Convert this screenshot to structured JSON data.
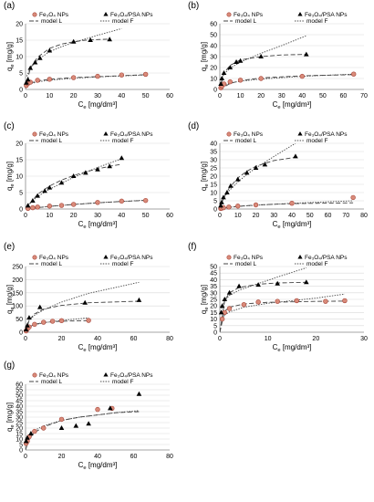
{
  "legend_entries": {
    "s1": "Fe₃O₄ NPs",
    "s2": "Fe₃O₄/PSA NPs",
    "l": "model L",
    "f": "model F"
  },
  "colors": {
    "s1_fill": "#d98b7a",
    "s1_stroke": "#a8463a",
    "s2": "#000000",
    "model_l": "#444444",
    "model_f": "#444444",
    "axis": "#888888",
    "grid": "#d9d9d9"
  },
  "chart_data": [
    {
      "panel": "(a)",
      "type": "scatter",
      "xlabel": "Ce [mg/dm³]",
      "ylabel": "qe [mg/g]",
      "xlim": [
        0,
        60
      ],
      "ylim": [
        0,
        20
      ],
      "xticks": [
        0,
        10,
        20,
        30,
        40,
        50,
        60
      ],
      "yticks": [
        0,
        5,
        10,
        15,
        20
      ],
      "series": [
        {
          "name": "Fe₃O₄ NPs",
          "x": [
            0.3,
            1,
            2,
            5,
            10,
            20,
            30,
            40,
            50
          ],
          "y": [
            1.2,
            1.8,
            2.2,
            2.8,
            3.1,
            3.6,
            4.0,
            4.4,
            4.6
          ]
        },
        {
          "name": "Fe₃O₄/PSA NPs",
          "x": [
            0.3,
            1,
            2,
            4,
            6,
            10,
            20,
            27,
            35
          ],
          "y": [
            2.0,
            3.0,
            6.5,
            8.2,
            9.5,
            11.8,
            14.5,
            15.0,
            15.2
          ]
        }
      ],
      "models": [
        {
          "name": "model L",
          "x": [
            0,
            2,
            5,
            10,
            15,
            20,
            25,
            30,
            35
          ],
          "y": [
            0.5,
            6.5,
            9.8,
            12.5,
            13.8,
            14.5,
            15.0,
            15.2,
            15.3
          ]
        },
        {
          "name": "model F",
          "x": [
            0.5,
            2,
            5,
            10,
            15,
            20,
            25,
            30,
            35,
            40
          ],
          "y": [
            4.0,
            6.5,
            9.0,
            11.5,
            13.0,
            14.3,
            15.4,
            16.5,
            17.5,
            18.5
          ]
        },
        {
          "name": "model L",
          "x": [
            0,
            2,
            5,
            10,
            20,
            30,
            40,
            50
          ],
          "y": [
            0.4,
            1.9,
            2.6,
            3.1,
            3.6,
            3.9,
            4.2,
            4.5
          ]
        },
        {
          "name": "model F",
          "x": [
            0.5,
            2,
            5,
            10,
            20,
            30,
            40,
            50
          ],
          "y": [
            1.1,
            1.7,
            2.3,
            2.8,
            3.4,
            3.8,
            4.1,
            4.4
          ]
        }
      ]
    },
    {
      "panel": "(b)",
      "type": "scatter",
      "xlabel": "Ce [mg/dm³]",
      "ylabel": "qe [mg/g]",
      "xlim": [
        0,
        70
      ],
      "ylim": [
        0,
        60
      ],
      "xticks": [
        0,
        10,
        20,
        30,
        40,
        50,
        60,
        70
      ],
      "yticks": [
        0,
        10,
        20,
        30,
        40,
        50,
        60
      ],
      "series": [
        {
          "name": "Fe₃O₄ NPs",
          "x": [
            0.5,
            1,
            2,
            5,
            10,
            20,
            40,
            65
          ],
          "y": [
            1.5,
            3,
            5,
            7,
            8.5,
            10,
            12,
            14
          ]
        },
        {
          "name": "Fe₃O₄/PSA NPs",
          "x": [
            0.5,
            1,
            2,
            5,
            8,
            10,
            20,
            42
          ],
          "y": [
            5,
            10,
            15,
            20,
            25,
            26,
            30,
            32
          ]
        }
      ],
      "models": [
        {
          "name": "model L",
          "x": [
            0,
            2,
            5,
            10,
            20,
            30,
            42
          ],
          "y": [
            0,
            15,
            22,
            27,
            30,
            31.5,
            32
          ]
        },
        {
          "name": "model F",
          "x": [
            0.5,
            2,
            5,
            10,
            20,
            30,
            42
          ],
          "y": [
            8,
            14,
            19.5,
            25,
            33,
            40,
            49
          ]
        },
        {
          "name": "model L",
          "x": [
            0,
            5,
            10,
            20,
            40,
            65
          ],
          "y": [
            0,
            5.5,
            8,
            10.5,
            12.5,
            13.5
          ]
        },
        {
          "name": "model F",
          "x": [
            0.5,
            5,
            10,
            20,
            40,
            65
          ],
          "y": [
            3,
            6,
            7.5,
            9.5,
            12,
            14
          ]
        }
      ]
    },
    {
      "panel": "(c)",
      "type": "scatter",
      "xlabel": "Ce [mg/dm³]",
      "ylabel": "qe [mg/g]",
      "xlim": [
        0,
        60
      ],
      "ylim": [
        0,
        20
      ],
      "xticks": [
        0,
        10,
        20,
        30,
        40,
        50,
        60
      ],
      "yticks": [
        0,
        5,
        10,
        15,
        20
      ],
      "series": [
        {
          "name": "Fe₃O₄ NPs",
          "x": [
            1,
            3,
            5,
            10,
            15,
            20,
            30,
            40,
            50
          ],
          "y": [
            0.2,
            0.4,
            0.6,
            0.9,
            1.1,
            1.4,
            2.0,
            2.4,
            2.6
          ]
        },
        {
          "name": "Fe₃O₄/PSA NPs",
          "x": [
            1,
            3,
            5,
            8,
            10,
            15,
            20,
            25,
            30,
            35,
            40
          ],
          "y": [
            1.0,
            2.5,
            4.0,
            5.5,
            6.5,
            8.0,
            10.0,
            11.0,
            12.0,
            13.0,
            15.5
          ]
        }
      ],
      "models": [
        {
          "name": "model L",
          "x": [
            0,
            5,
            10,
            15,
            20,
            25,
            30,
            35,
            40
          ],
          "y": [
            0,
            4.5,
            7.0,
            8.8,
            10.2,
            11.3,
            12.2,
            13.0,
            13.6
          ]
        },
        {
          "name": "model F",
          "x": [
            0.5,
            5,
            10,
            15,
            20,
            25,
            30,
            35,
            40
          ],
          "y": [
            1.0,
            3.8,
            6.0,
            7.9,
            9.6,
            11.2,
            12.6,
            14.0,
            15.3
          ]
        },
        {
          "name": "model L",
          "x": [
            0,
            10,
            20,
            30,
            40,
            50
          ],
          "y": [
            0,
            0.8,
            1.4,
            1.9,
            2.3,
            2.6
          ]
        },
        {
          "name": "model F",
          "x": [
            0.5,
            10,
            20,
            30,
            40,
            50
          ],
          "y": [
            0.1,
            0.8,
            1.4,
            1.9,
            2.3,
            2.7
          ]
        }
      ]
    },
    {
      "panel": "(d)",
      "type": "scatter",
      "xlabel": "Ce [mg/dm³]",
      "ylabel": "qe [mg/g]",
      "xlim": [
        0,
        80
      ],
      "ylim": [
        0,
        40
      ],
      "xticks": [
        0,
        10,
        20,
        30,
        40,
        50,
        60,
        70,
        80
      ],
      "yticks": [
        0,
        5,
        10,
        15,
        20,
        25,
        30,
        35,
        40
      ],
      "series": [
        {
          "name": "Fe₃O₄ NPs",
          "x": [
            0.5,
            1,
            2,
            5,
            10,
            20,
            40,
            74
          ],
          "y": [
            0.3,
            0.5,
            0.8,
            1.2,
            1.8,
            2.5,
            3.5,
            7.0
          ]
        },
        {
          "name": "Fe₃O₄/PSA NPs",
          "x": [
            0.5,
            1,
            2,
            4,
            6,
            10,
            15,
            20,
            25,
            42
          ],
          "y": [
            2,
            4,
            7,
            10,
            14,
            18,
            22,
            25,
            27,
            32
          ]
        }
      ],
      "models": [
        {
          "name": "model L",
          "x": [
            0,
            2,
            5,
            10,
            15,
            20,
            30,
            42
          ],
          "y": [
            0,
            6.5,
            12.5,
            19,
            23,
            26,
            29.5,
            31.5
          ]
        },
        {
          "name": "model F",
          "x": [
            0.5,
            2,
            5,
            10,
            15,
            20,
            30,
            42
          ],
          "y": [
            3,
            6.5,
            11,
            16.5,
            21,
            25,
            32,
            40
          ]
        },
        {
          "name": "model L",
          "x": [
            0,
            10,
            20,
            40,
            74
          ],
          "y": [
            0,
            1.6,
            2.5,
            3.3,
            3.8
          ]
        },
        {
          "name": "model F",
          "x": [
            0.5,
            10,
            20,
            40,
            74
          ],
          "y": [
            0.4,
            1.6,
            2.3,
            3.5,
            5.0
          ]
        }
      ]
    },
    {
      "panel": "(e)",
      "type": "scatter",
      "xlabel": "Ce [mg/dm³]",
      "ylabel": "qe [mg/g]",
      "xlim": [
        0,
        80
      ],
      "ylim": [
        0,
        250
      ],
      "xticks": [
        0,
        20,
        40,
        60,
        80
      ],
      "yticks": [
        0,
        50,
        100,
        150,
        200,
        250
      ],
      "series": [
        {
          "name": "Fe₃O₄ NPs",
          "x": [
            0.3,
            1,
            2,
            5,
            10,
            15,
            20,
            35
          ],
          "y": [
            5,
            12,
            20,
            30,
            38,
            42,
            44,
            45
          ]
        },
        {
          "name": "Fe₃O₄/PSA NPs",
          "x": [
            0.3,
            1,
            2,
            8,
            33,
            63
          ],
          "y": [
            10,
            25,
            55,
            95,
            112,
            122
          ]
        }
      ],
      "models": [
        {
          "name": "model L",
          "x": [
            0,
            2,
            5,
            10,
            20,
            35,
            63
          ],
          "y": [
            0,
            45,
            70,
            88,
            102,
            112,
            118
          ]
        },
        {
          "name": "model F",
          "x": [
            0.5,
            2,
            5,
            10,
            20,
            35,
            63
          ],
          "y": [
            25,
            45,
            65,
            85,
            115,
            148,
            190
          ]
        },
        {
          "name": "model L",
          "x": [
            0,
            2,
            5,
            10,
            20,
            35
          ],
          "y": [
            0,
            20,
            30,
            37,
            42,
            44
          ]
        },
        {
          "name": "model F",
          "x": [
            0.5,
            2,
            5,
            10,
            20,
            35
          ],
          "y": [
            10,
            20,
            28,
            36,
            45,
            55
          ]
        }
      ]
    },
    {
      "panel": "(f)",
      "type": "scatter",
      "xlabel": "Ce [mg/dm³]",
      "ylabel": "qe [mg/g]",
      "xlim": [
        0,
        30
      ],
      "ylim": [
        0,
        50
      ],
      "xticks": [
        0,
        10,
        20,
        30
      ],
      "yticks": [
        0,
        5,
        10,
        15,
        20,
        25,
        30,
        35,
        40,
        45,
        50
      ],
      "series": [
        {
          "name": "Fe₃O₄ NPs",
          "x": [
            0.5,
            1,
            2,
            5,
            8,
            12,
            16,
            22,
            26
          ],
          "y": [
            10,
            15,
            18,
            21,
            23,
            23.5,
            24,
            23.5,
            24
          ]
        },
        {
          "name": "Fe₃O₄/PSA NPs",
          "x": [
            0.3,
            0.5,
            1,
            2,
            4,
            8,
            12,
            18
          ],
          "y": [
            15,
            20,
            25,
            30,
            35,
            36,
            37,
            38
          ]
        }
      ],
      "models": [
        {
          "name": "model L",
          "x": [
            0,
            1,
            2,
            4,
            8,
            12,
            18
          ],
          "y": [
            0,
            24,
            30,
            34,
            36.5,
            37.5,
            38
          ]
        },
        {
          "name": "model F",
          "x": [
            0.3,
            1,
            2,
            4,
            8,
            12,
            18
          ],
          "y": [
            18,
            24,
            28,
            32,
            37,
            42,
            49
          ]
        },
        {
          "name": "model L",
          "x": [
            0,
            1,
            2,
            5,
            10,
            20,
            26
          ],
          "y": [
            0,
            16,
            19,
            21.5,
            22.8,
            23.5,
            23.7
          ]
        },
        {
          "name": "model F",
          "x": [
            0.3,
            1,
            2,
            5,
            10,
            20,
            26
          ],
          "y": [
            10,
            13,
            15.5,
            19,
            22,
            26,
            29
          ]
        }
      ]
    },
    {
      "panel": "(g)",
      "type": "scatter",
      "xlabel": "Ce [mg/dm³]",
      "ylabel": "qe [mg/g]",
      "xlim": [
        0,
        80
      ],
      "ylim": [
        0,
        60
      ],
      "xticks": [
        0,
        20,
        40,
        60,
        80
      ],
      "yticks": [
        0,
        5,
        10,
        15,
        20,
        25,
        30,
        35,
        40,
        45,
        50,
        55,
        60
      ],
      "series": [
        {
          "name": "Fe₃O₄ NPs",
          "x": [
            0.3,
            1,
            2,
            5,
            10,
            20,
            40,
            48
          ],
          "y": [
            6,
            8,
            12,
            17,
            20,
            28,
            37,
            38
          ]
        },
        {
          "name": "Fe₃O₄/PSA NPs",
          "x": [
            0.3,
            1,
            3,
            20,
            28,
            35,
            47,
            63
          ],
          "y": [
            8,
            11,
            15,
            20,
            22,
            24,
            38,
            51
          ]
        }
      ],
      "models": [
        {
          "name": "model L",
          "x": [
            0,
            2,
            5,
            10,
            20,
            30,
            40,
            50,
            63
          ],
          "y": [
            0,
            10,
            16,
            21,
            27,
            30,
            32,
            34,
            35
          ]
        },
        {
          "name": "model F",
          "x": [
            0.5,
            2,
            5,
            10,
            20,
            30,
            40,
            50,
            63
          ],
          "y": [
            9,
            13,
            18,
            22,
            27,
            30,
            32,
            34,
            36
          ]
        }
      ]
    }
  ]
}
